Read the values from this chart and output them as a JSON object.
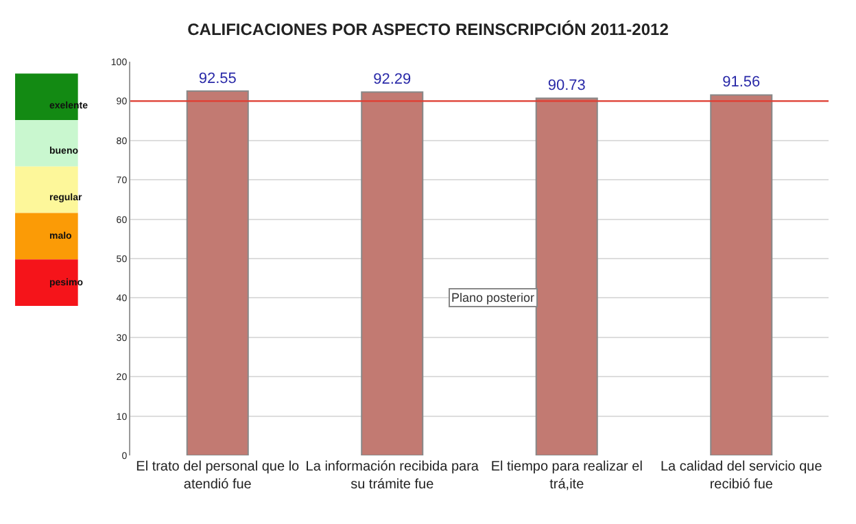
{
  "chart_data": {
    "type": "bar",
    "title": "CALIFICACIONES POR ASPECTO REINSCRIPCIÓN 2011-2012",
    "categories": [
      "El trato del personal que lo atendió fue",
      "La información recibida para su trámite fue",
      "El tiempo para realizar el trá,ite",
      "La calidad del servicio que recibió fue"
    ],
    "values": [
      92.55,
      92.29,
      90.73,
      91.56
    ],
    "color": "#c27a72",
    "data_labels": true,
    "ylim": [
      0,
      100
    ],
    "yticks": [
      0,
      10,
      20,
      30,
      40,
      50,
      60,
      70,
      80,
      90,
      100
    ],
    "grid": "y",
    "ref_lines": [
      {
        "axis": "y",
        "value": 90,
        "color": "#e03c31"
      }
    ],
    "annotations": [
      "exelente",
      "bueno",
      "regular",
      "malo",
      "pesimo",
      "Plano posterior"
    ]
  }
}
